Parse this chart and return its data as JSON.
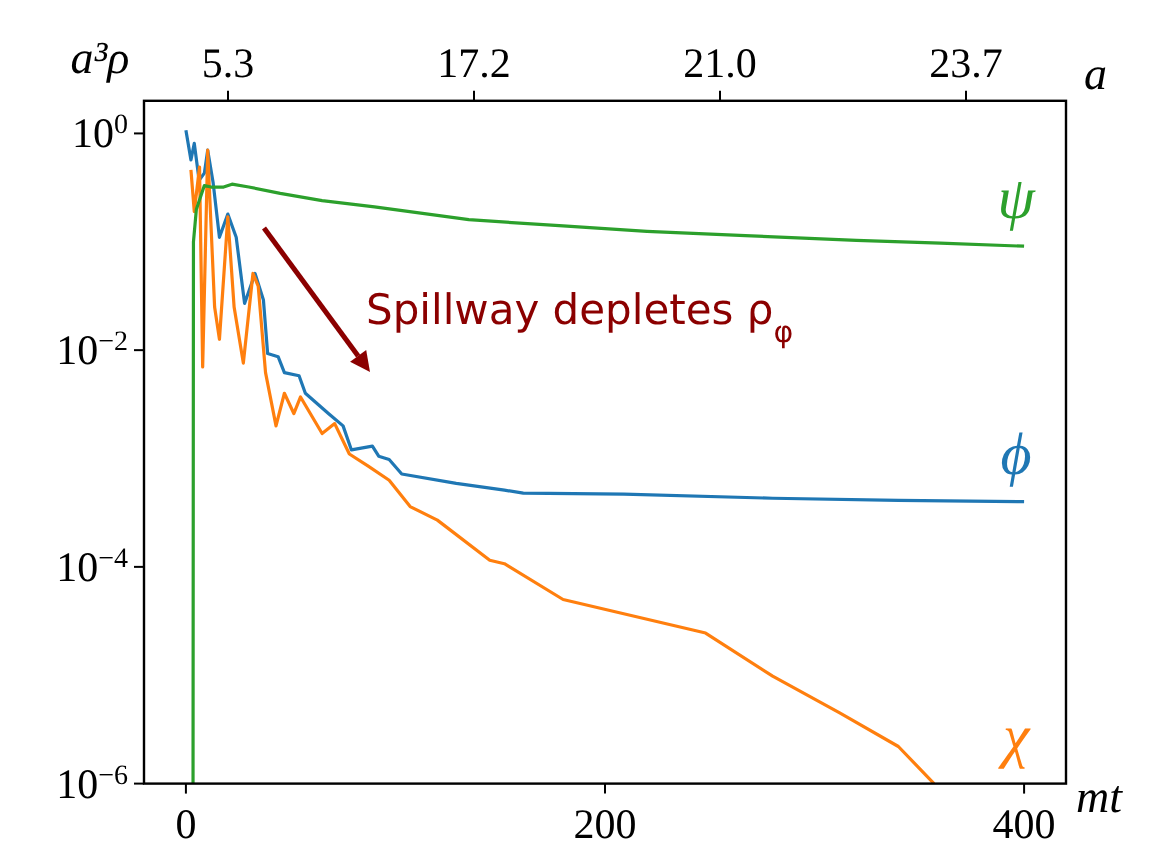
{
  "chart_data": {
    "type": "line",
    "xlabel": "mt",
    "ylabel": "a³ρ",
    "x2label": "a",
    "log": "y",
    "xlim": [
      -20,
      420
    ],
    "xticks": [
      0,
      200,
      400
    ],
    "ylim": [
      1e-06,
      2
    ],
    "yticks": [
      {
        "value": 1,
        "label": "10$^{0}$"
      },
      {
        "value": 0.01,
        "label": "10$^{−2}$"
      },
      {
        "value": 0.0001,
        "label": "10$^{−4}$"
      },
      {
        "value": 1e-06,
        "label": "10$^{−6}$"
      }
    ],
    "annotations": [
      "5.3",
      "17.2",
      "21.0",
      "23.7",
      "Spillway depletes ρ$_{φ}$"
    ],
    "series": [
      {
        "name": "ϕ",
        "color": "#1f77b4",
        "x": [
          0,
          2.4,
          4,
          6.3,
          8.8,
          10.4,
          13,
          16,
          20,
          24,
          28,
          33,
          37,
          39,
          44,
          47,
          54,
          57,
          68,
          75,
          79,
          89,
          92,
          97,
          103,
          129,
          152,
          161,
          209,
          280,
          340,
          400
        ],
        "values": [
          1.07,
          0.57,
          0.81,
          0.37,
          0.43,
          0.7,
          0.35,
          0.11,
          0.18,
          0.11,
          0.027,
          0.051,
          0.029,
          0.0093,
          0.0087,
          0.0062,
          0.0058,
          0.004,
          0.0026,
          0.002,
          0.0012,
          0.0013,
          0.00105,
          0.00098,
          0.00072,
          0.00059,
          0.00051,
          0.00048,
          0.00047,
          0.00043,
          0.00041,
          0.0004
        ]
      },
      {
        "name": "χ",
        "color": "#ff7f0e",
        "x": [
          2.4,
          4,
          6.5,
          8,
          10.4,
          13.7,
          16,
          20,
          23,
          27.4,
          32,
          34.5,
          38,
          43,
          47,
          51.5,
          54.7,
          65,
          71,
          78,
          87,
          97,
          107,
          120,
          145,
          152,
          180,
          248,
          280,
          312,
          340,
          357
        ],
        "values": [
          0.46,
          0.19,
          0.49,
          0.007,
          0.7,
          0.025,
          0.0126,
          0.17,
          0.025,
          0.0076,
          0.051,
          0.039,
          0.0062,
          0.002,
          0.004,
          0.0026,
          0.0037,
          0.0017,
          0.0021,
          0.0011,
          0.00085,
          0.00063,
          0.00036,
          0.00027,
          0.000115,
          0.000107,
          5e-05,
          2.45e-05,
          9.8e-06,
          4.5e-06,
          2.2e-06,
          1e-06
        ]
      },
      {
        "name": "ψ",
        "color": "#2ca02c",
        "x": [
          3.4,
          3.6,
          5,
          8.8,
          12,
          18,
          22,
          30,
          45,
          65,
          90,
          135,
          180,
          220,
          267,
          320,
          360,
          400
        ],
        "values": [
          1e-06,
          0.1,
          0.2,
          0.33,
          0.32,
          0.32,
          0.34,
          0.32,
          0.28,
          0.24,
          0.21,
          0.16,
          0.14,
          0.125,
          0.114,
          0.103,
          0.097,
          0.091
        ]
      }
    ]
  }
}
